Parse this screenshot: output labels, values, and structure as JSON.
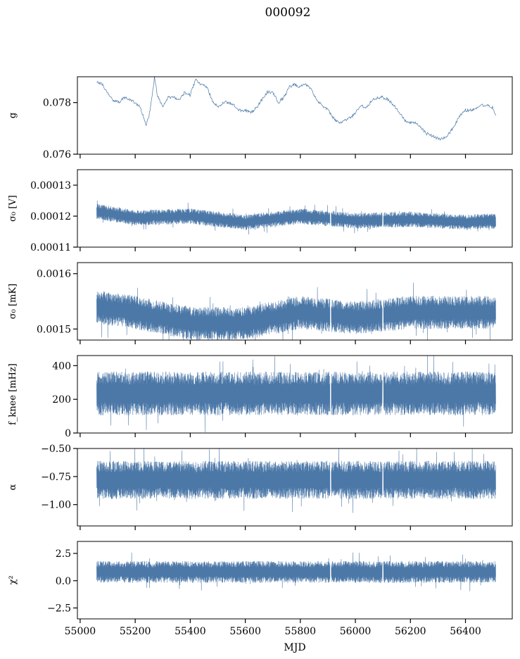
{
  "title": "000092",
  "series_color": "#4c78a8",
  "chart_data": [
    {
      "type": "line",
      "ylabel": "g",
      "ylim": [
        0.076,
        0.079
      ],
      "yticks": [
        0.076,
        0.078
      ],
      "ytick_labels": [
        "0.076",
        "0.078"
      ],
      "x": [
        55060,
        55080,
        55100,
        55120,
        55140,
        55160,
        55180,
        55200,
        55220,
        55240,
        55250,
        55260,
        55270,
        55280,
        55300,
        55320,
        55340,
        55360,
        55380,
        55400,
        55420,
        55440,
        55460,
        55480,
        55500,
        55520,
        55540,
        55560,
        55580,
        55600,
        55620,
        55640,
        55660,
        55680,
        55700,
        55720,
        55740,
        55760,
        55780,
        55800,
        55820,
        55840,
        55860,
        55880,
        55900,
        55920,
        55940,
        55960,
        55980,
        56000,
        56020,
        56040,
        56060,
        56080,
        56100,
        56120,
        56140,
        56160,
        56180,
        56200,
        56220,
        56240,
        56260,
        56280,
        56300,
        56320,
        56340,
        56360,
        56380,
        56400,
        56420,
        56440,
        56460,
        56480,
        56500,
        56510
      ],
      "y": [
        0.0788,
        0.0787,
        0.0784,
        0.0781,
        0.078,
        0.0782,
        0.0781,
        0.078,
        0.0778,
        0.0771,
        0.0775,
        0.0781,
        0.079,
        0.0783,
        0.0778,
        0.0782,
        0.0782,
        0.0781,
        0.0784,
        0.0783,
        0.0789,
        0.0787,
        0.0786,
        0.0781,
        0.0778,
        0.078,
        0.078,
        0.0779,
        0.0777,
        0.0777,
        0.0776,
        0.0778,
        0.0781,
        0.0784,
        0.0784,
        0.078,
        0.0782,
        0.0786,
        0.0787,
        0.0786,
        0.0787,
        0.0785,
        0.0781,
        0.0779,
        0.0777,
        0.0774,
        0.0772,
        0.0773,
        0.0774,
        0.0776,
        0.0779,
        0.0778,
        0.0781,
        0.0782,
        0.0782,
        0.0781,
        0.0779,
        0.0776,
        0.0773,
        0.0772,
        0.0772,
        0.077,
        0.0768,
        0.0767,
        0.0766,
        0.0766,
        0.0768,
        0.0771,
        0.0775,
        0.0777,
        0.0777,
        0.0778,
        0.0779,
        0.0779,
        0.0778,
        0.0775
      ]
    },
    {
      "type": "line",
      "ylabel": "σ₀ [V]",
      "ylim": [
        0.00011,
        0.000135
      ],
      "yticks": [
        0.00011,
        0.00012,
        0.00013
      ],
      "ytick_labels": [
        "0.00011",
        "0.00012",
        "0.00013"
      ],
      "x_range": [
        55060,
        56510
      ],
      "band": {
        "x": [
          55060,
          55200,
          55400,
          55600,
          55800,
          56000,
          56200,
          56400,
          56510
        ],
        "center": [
          0.0001215,
          0.0001195,
          0.00012,
          0.000118,
          0.00012,
          0.0001185,
          0.000119,
          0.000118,
          0.0001185
        ],
        "halfwidth": 2.5e-06
      },
      "gaps": [
        55910,
        56100
      ]
    },
    {
      "type": "line",
      "ylabel": "σ₀ [mK]",
      "ylim": [
        0.00148,
        0.00162
      ],
      "yticks": [
        0.0015,
        0.0016
      ],
      "ytick_labels": [
        "0.0015",
        "0.0016"
      ],
      "x_range": [
        55060,
        56510
      ],
      "band": {
        "x": [
          55060,
          55200,
          55400,
          55600,
          55800,
          56000,
          56200,
          56400,
          56510
        ],
        "center": [
          0.00154,
          0.00153,
          0.00151,
          0.00151,
          0.00153,
          0.00152,
          0.00153,
          0.00153,
          0.00153
        ],
        "halfwidth": 3e-05
      },
      "gaps": [
        55910,
        56100
      ]
    },
    {
      "type": "line",
      "ylabel": "f_knee [mHz]",
      "ylim": [
        0,
        460
      ],
      "yticks": [
        0,
        200,
        400
      ],
      "ytick_labels": [
        "0",
        "200",
        "400"
      ],
      "x_range": [
        55060,
        56510
      ],
      "band": {
        "x": [
          55060,
          56510
        ],
        "center": [
          235,
          235
        ],
        "halfwidth": 130
      },
      "gaps": [
        55910,
        56100
      ]
    },
    {
      "type": "line",
      "ylabel": "α",
      "ylim": [
        -1.19,
        -0.5
      ],
      "yticks": [
        -1.0,
        -0.75,
        -0.5
      ],
      "ytick_labels": [
        "−1.00",
        "−0.75",
        "−0.50"
      ],
      "x_range": [
        55060,
        56510
      ],
      "band": {
        "x": [
          55060,
          56510
        ],
        "center": [
          -0.78,
          -0.78
        ],
        "halfwidth": 0.17
      },
      "gaps": [
        55910,
        56100
      ]
    },
    {
      "type": "line",
      "ylabel": "χ²",
      "ylim": [
        -3.5,
        3.6
      ],
      "yticks": [
        -2.5,
        0.0,
        2.5
      ],
      "ytick_labels": [
        "−2.5",
        "0.0",
        "2.5"
      ],
      "x_range": [
        55060,
        56510
      ],
      "band": {
        "x": [
          55060,
          56510
        ],
        "center": [
          0.8,
          0.8
        ],
        "halfwidth": 1.0
      },
      "gaps": [
        55910,
        56100
      ]
    }
  ],
  "xaxis": {
    "label": "MJD",
    "xlim": [
      54990,
      56570
    ],
    "ticks": [
      55000,
      55200,
      55400,
      55600,
      55800,
      56000,
      56200,
      56400
    ],
    "tick_labels": [
      "55000",
      "55200",
      "55400",
      "55600",
      "55800",
      "56000",
      "56200",
      "56400"
    ]
  }
}
